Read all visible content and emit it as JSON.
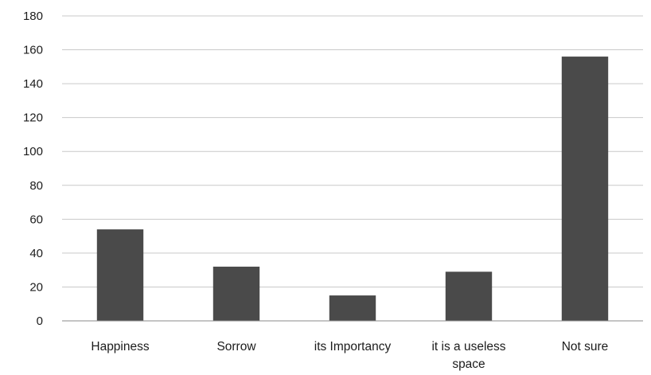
{
  "chart_data": {
    "type": "bar",
    "categories": [
      "Happiness",
      "Sorrow",
      "its Importancy",
      "it is a useless space",
      "Not sure"
    ],
    "category_lines": [
      [
        "Happiness"
      ],
      [
        "Sorrow"
      ],
      [
        "its Importancy"
      ],
      [
        "it is a useless",
        "space"
      ],
      [
        "Not sure"
      ]
    ],
    "values": [
      54,
      32,
      15,
      29,
      156
    ],
    "ylim": [
      0,
      180
    ],
    "yticks": [
      0,
      20,
      40,
      60,
      80,
      100,
      120,
      140,
      160,
      180
    ],
    "grid": true,
    "legend": "none",
    "bar_color": "#4a4a4a",
    "title": "",
    "xlabel": "",
    "ylabel": ""
  }
}
